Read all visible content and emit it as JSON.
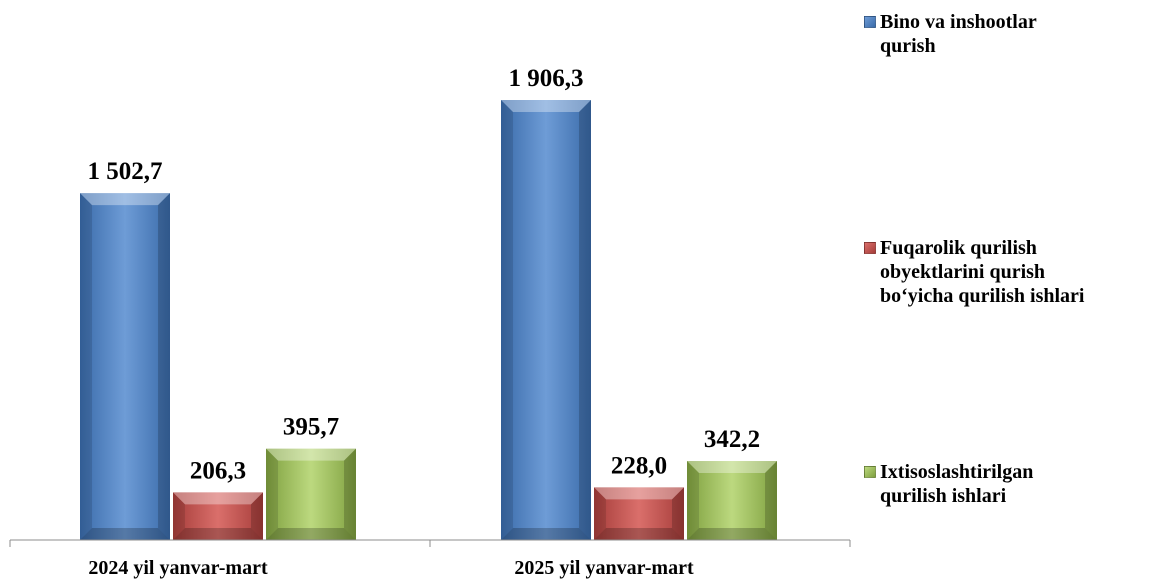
{
  "chart_data": {
    "type": "bar",
    "categories": [
      "2024 yil yanvar-mart",
      "2025 yil yanvar-mart"
    ],
    "series": [
      {
        "name": "Bino va inshootlar\nqurish",
        "values": [
          1502.7,
          1906.3
        ],
        "labels": [
          "1 502,7",
          "1 906,3"
        ],
        "color": "#4F81BD"
      },
      {
        "name": "Fuqarolik qurilish\nobyektlarini  qurish\nbo‘yicha qurilish ishlari",
        "values": [
          206.3,
          228.0
        ],
        "labels": [
          "206,3",
          "228,0"
        ],
        "color": "#C0504D"
      },
      {
        "name": "Ixtisoslashtirilgan\nqurilish ishlari",
        "values": [
          395.7,
          342.2
        ],
        "labels": [
          "395,7",
          "342,2"
        ],
        "color": "#9BBB59"
      }
    ],
    "ylim": [
      0,
      2100
    ],
    "grid": false,
    "legend": "right"
  }
}
